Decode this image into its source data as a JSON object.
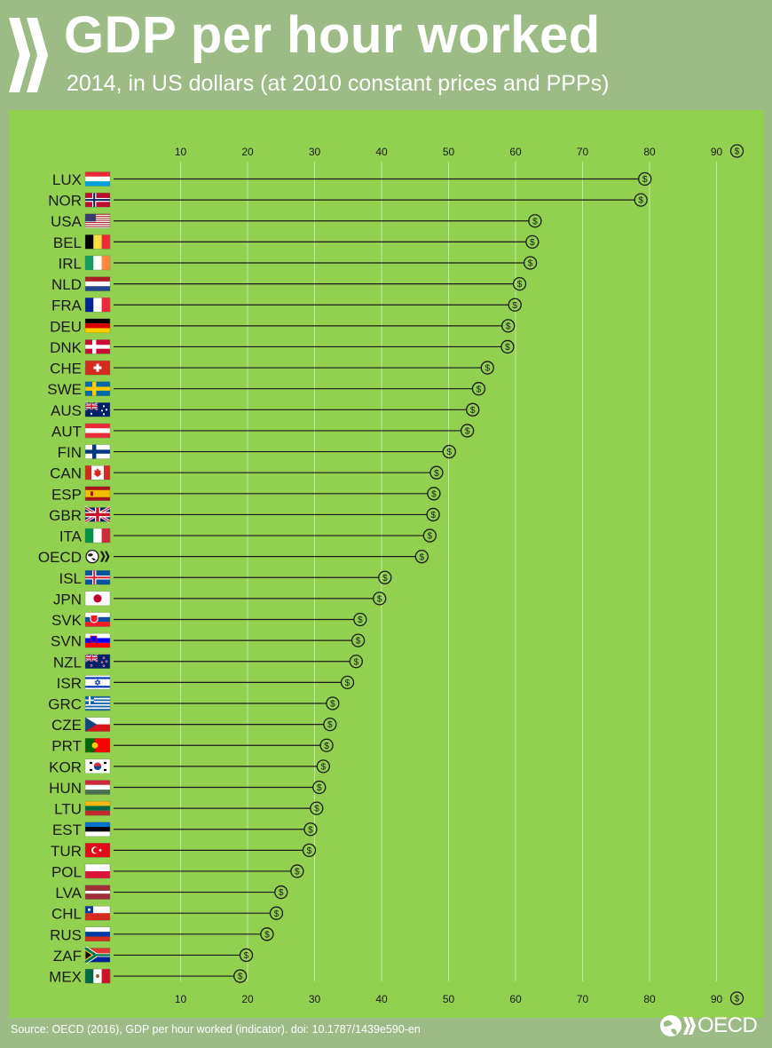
{
  "header": {
    "title": "GDP per hour worked",
    "subtitle": "2014, in US dollars (at 2010 constant prices and PPPs)"
  },
  "footer": {
    "source": "Source: OECD (2016), GDP per hour worked (indicator). doi: 10.1787/1439e590-en",
    "logo_text": "OECD"
  },
  "colors": {
    "background": "#9dbb84",
    "panel": "#92d050",
    "line": "#1a1a1a",
    "grid": "#c7e6a4",
    "text": "#1a1a1a"
  },
  "chart_data": {
    "type": "lollipop",
    "title": "GDP per hour worked",
    "subtitle": "2014, in US dollars (at 2010 constant prices and PPPs)",
    "xlabel": "",
    "ylabel": "",
    "axis_unit_symbol": "$",
    "xlim": [
      0,
      90
    ],
    "ticks": [
      10,
      20,
      30,
      40,
      50,
      60,
      70,
      80,
      90
    ],
    "categories": [
      "LUX",
      "NOR",
      "USA",
      "BEL",
      "IRL",
      "NLD",
      "FRA",
      "DEU",
      "DNK",
      "CHE",
      "SWE",
      "AUS",
      "AUT",
      "FIN",
      "CAN",
      "ESP",
      "GBR",
      "ITA",
      "OECD",
      "ISL",
      "JPN",
      "SVK",
      "SVN",
      "NZL",
      "ISR",
      "GRC",
      "CZE",
      "PRT",
      "KOR",
      "HUN",
      "LTU",
      "EST",
      "TUR",
      "POL",
      "LVA",
      "CHL",
      "RUS",
      "ZAF",
      "MEX"
    ],
    "values": [
      79.3,
      78.7,
      62.9,
      62.5,
      62.2,
      60.6,
      59.9,
      58.9,
      58.8,
      55.8,
      54.5,
      53.6,
      52.8,
      50.1,
      48.2,
      47.8,
      47.7,
      47.2,
      46.0,
      40.5,
      39.7,
      36.8,
      36.5,
      36.2,
      34.9,
      32.7,
      32.3,
      31.8,
      31.3,
      30.7,
      30.3,
      29.4,
      29.2,
      27.4,
      25.0,
      24.3,
      22.9,
      19.8,
      18.9
    ],
    "marker": "dollar-coin"
  }
}
